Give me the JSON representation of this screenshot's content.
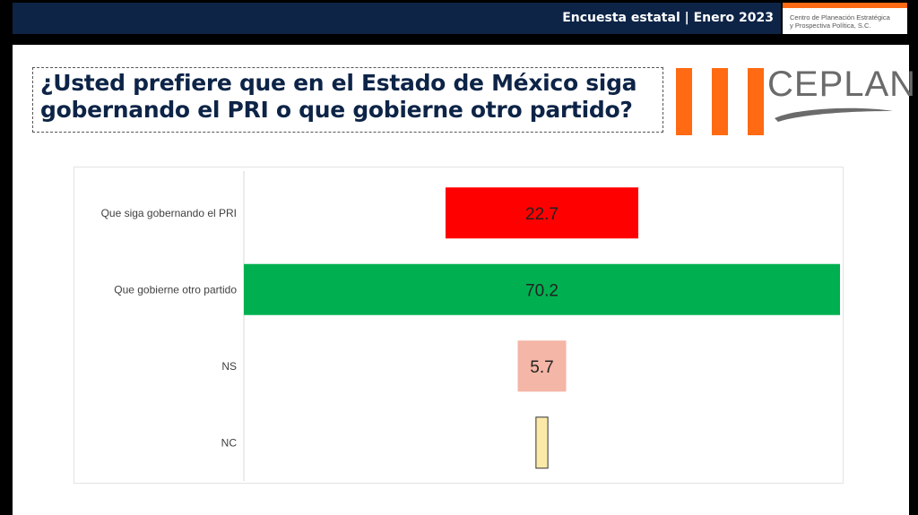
{
  "header": {
    "title": "Encuesta estatal | Enero 2023",
    "org_line1": "Centro de Planeación Estratégica",
    "org_line2": "y Prospectiva Política, S.C.",
    "accent_color": "#ff6a13",
    "bar_color": "#0d2447"
  },
  "question": {
    "line1": "¿Usted prefiere que en el Estado de México siga",
    "line2": "gobernando el PRI o que gobierne otro partido?"
  },
  "logo": {
    "text": "CEPLAN"
  },
  "chart_data": {
    "type": "bar",
    "orientation": "horizontal",
    "categories": [
      "Que siga gobernando el PRI",
      "Que gobierne otro partido",
      "NS",
      "NC"
    ],
    "values": [
      22.7,
      70.2,
      5.7,
      1.4
    ],
    "data_labels": [
      "22.7",
      "70.2",
      "5.7",
      ""
    ],
    "colors": [
      "#ff0000",
      "#00b050",
      "#f4b6a6",
      "#fbe9a9"
    ],
    "xlim": [
      0,
      70.2
    ],
    "grid": false,
    "legend": "none"
  }
}
